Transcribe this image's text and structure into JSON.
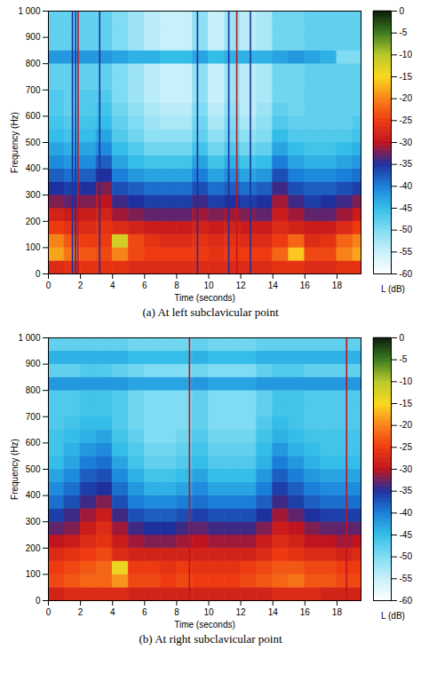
{
  "chart_data": [
    {
      "type": "heatmap",
      "caption": "(a) At left subclavicular point",
      "x_label": "Time (seconds)",
      "y_label": "Frequency (Hz)",
      "xlim": [
        0,
        19.5
      ],
      "xticks": [
        0,
        2,
        4,
        6,
        8,
        10,
        12,
        14,
        16,
        18
      ],
      "ylim": [
        0,
        1000
      ],
      "yticks": [
        0,
        100,
        200,
        300,
        400,
        500,
        600,
        700,
        800,
        900,
        {
          "value": 1000,
          "label": "1 000"
        }
      ],
      "cells": {
        "x_bins": [
          0,
          1,
          2,
          3,
          4,
          5,
          6,
          7,
          8,
          9,
          10,
          11,
          12,
          13,
          14,
          15,
          16,
          17,
          18,
          19,
          19.5
        ],
        "y_bins": [
          0,
          50,
          100,
          150,
          200,
          250,
          300,
          350,
          400,
          450,
          500,
          550,
          600,
          650,
          700,
          750,
          800,
          850,
          900,
          950,
          1000
        ],
        "values": [
          [
            -27,
            -26,
            -26,
            -26,
            -26,
            -27,
            -27,
            -27,
            -27,
            -27,
            -27,
            -27,
            -27,
            -27,
            -26,
            -26,
            -27,
            -27,
            -26,
            -26
          ],
          [
            -18,
            -21,
            -23,
            -24,
            -20,
            -24,
            -25,
            -25,
            -25,
            -25,
            -26,
            -25,
            -25,
            -25,
            -22,
            -16,
            -24,
            -24,
            -20,
            -18
          ],
          [
            -20,
            -23,
            -25,
            -25,
            -12,
            -24,
            -26,
            -27,
            -27,
            -26,
            -27,
            -26,
            -27,
            -27,
            -25,
            -22,
            -27,
            -26,
            -22,
            -20
          ],
          [
            -25,
            -26,
            -27,
            -26,
            -27,
            -28,
            -29,
            -29,
            -29,
            -28,
            -29,
            -28,
            -29,
            -29,
            -27,
            -28,
            -29,
            -29,
            -27,
            -25
          ],
          [
            -28,
            -29,
            -29,
            -28,
            -31,
            -32,
            -33,
            -33,
            -33,
            -31,
            -32,
            -31,
            -32,
            -33,
            -29,
            -31,
            -33,
            -33,
            -31,
            -29
          ],
          [
            -32,
            -33,
            -32,
            -30,
            -34,
            -35,
            -36,
            -36,
            -36,
            -34,
            -36,
            -35,
            -36,
            -35,
            -31,
            -34,
            -36,
            -35,
            -34,
            -32
          ],
          [
            -35,
            -36,
            -35,
            -32,
            -37,
            -38,
            -39,
            -39,
            -39,
            -37,
            -39,
            -38,
            -39,
            -38,
            -34,
            -37,
            -38,
            -38,
            -37,
            -36
          ],
          [
            -38,
            -39,
            -38,
            -35,
            -40,
            -42,
            -43,
            -43,
            -43,
            -40,
            -43,
            -41,
            -43,
            -42,
            -37,
            -40,
            -41,
            -41,
            -40,
            -39
          ],
          [
            -41,
            -42,
            -41,
            -38,
            -43,
            -45,
            -46,
            -46,
            -46,
            -43,
            -46,
            -44,
            -46,
            -45,
            -40,
            -43,
            -44,
            -44,
            -43,
            -42
          ],
          [
            -43,
            -44,
            -43,
            -41,
            -45,
            -47,
            -49,
            -49,
            -49,
            -46,
            -49,
            -47,
            -49,
            -48,
            -43,
            -45,
            -46,
            -46,
            -45,
            -44
          ],
          [
            -45,
            -46,
            -45,
            -43,
            -47,
            -49,
            -51,
            -51,
            -51,
            -48,
            -51,
            -49,
            -51,
            -50,
            -45,
            -47,
            -47,
            -47,
            -47,
            -46
          ],
          [
            -46,
            -47,
            -46,
            -45,
            -48,
            -50,
            -52,
            -53,
            -53,
            -49,
            -53,
            -50,
            -53,
            -51,
            -47,
            -48,
            -48,
            -48,
            -48,
            -47
          ],
          [
            -47,
            -48,
            -47,
            -46,
            -49,
            -51,
            -53,
            -54,
            -54,
            -50,
            -54,
            -51,
            -54,
            -52,
            -48,
            -49,
            -48,
            -48,
            -48,
            -48
          ],
          [
            -47,
            -48,
            -47,
            -47,
            -50,
            -52,
            -54,
            -55,
            -55,
            -51,
            -55,
            -52,
            -54,
            -53,
            -49,
            -49,
            -48,
            -48,
            -48,
            -48
          ],
          [
            -48,
            -48,
            -48,
            -48,
            -50,
            -52,
            -54,
            -55,
            -55,
            -51,
            -55,
            -52,
            -54,
            -53,
            -49,
            -49,
            -48,
            -48,
            -48,
            -48
          ],
          [
            -48,
            -48,
            -48,
            -48,
            -50,
            -52,
            -54,
            -55,
            -55,
            -51,
            -55,
            -52,
            -54,
            -53,
            -49,
            -49,
            -48,
            -48,
            -48,
            -48
          ],
          [
            -42,
            -42,
            -42,
            -42,
            -43,
            -44,
            -44,
            -45,
            -45,
            -43,
            -45,
            -44,
            -44,
            -44,
            -43,
            -42,
            -43,
            -44,
            -50,
            -50
          ],
          [
            -48,
            -48,
            -48,
            -48,
            -50,
            -52,
            -54,
            -55,
            -55,
            -51,
            -55,
            -52,
            -54,
            -53,
            -49,
            -49,
            -48,
            -48,
            -48,
            -48
          ],
          [
            -48,
            -48,
            -48,
            -48,
            -50,
            -52,
            -54,
            -55,
            -55,
            -51,
            -55,
            -52,
            -54,
            -53,
            -49,
            -49,
            -48,
            -48,
            -48,
            -48
          ],
          [
            -48,
            -48,
            -48,
            -48,
            -50,
            -52,
            -54,
            -55,
            -55,
            -51,
            -55,
            -52,
            -54,
            -53,
            -49,
            -49,
            -48,
            -48,
            -48,
            -48
          ]
        ]
      },
      "impulses": {
        "x": [
          1.5,
          1.7,
          1.85,
          3.2,
          9.3,
          11.25,
          11.75,
          12.6
        ],
        "values": [
          -35,
          -35,
          -30,
          -35,
          -35,
          -35,
          -30,
          -35
        ]
      },
      "colorbar": {
        "label": "L (dB)",
        "range": [
          -60,
          0
        ],
        "ticks": [
          -60,
          -55,
          -50,
          -45,
          -40,
          -35,
          -30,
          -25,
          -20,
          -15,
          -10,
          -5,
          0
        ],
        "colors": [
          "#ffffff",
          "#c8f0fa",
          "#7fdcf2",
          "#33bde8",
          "#1a7fd9",
          "#1e2f9e",
          "#c0141e",
          "#ee3a10",
          "#f8821a",
          "#f9d81e",
          "#b8c82a",
          "#3a7a1e",
          "#0a1a08"
        ]
      }
    },
    {
      "type": "heatmap",
      "caption": "(b) At right subclavicular point",
      "x_label": "Time (seconds)",
      "y_label": "Frequency (Hz)",
      "xlim": [
        0,
        19.5
      ],
      "xticks": [
        0,
        2,
        4,
        6,
        8,
        10,
        12,
        14,
        16,
        18
      ],
      "ylim": [
        0,
        1000
      ],
      "yticks": [
        0,
        100,
        200,
        300,
        400,
        500,
        600,
        700,
        800,
        900,
        {
          "value": 1000,
          "label": "1 000"
        }
      ],
      "cells": {
        "x_bins": [
          0,
          1,
          2,
          3,
          4,
          5,
          6,
          7,
          8,
          9,
          10,
          11,
          12,
          13,
          14,
          15,
          16,
          17,
          18,
          19,
          19.5
        ],
        "y_bins": [
          0,
          50,
          100,
          150,
          200,
          250,
          300,
          350,
          400,
          450,
          500,
          550,
          600,
          650,
          700,
          750,
          800,
          850,
          900,
          950,
          1000
        ],
        "values": [
          [
            -28,
            -27,
            -27,
            -27,
            -27,
            -28,
            -28,
            -28,
            -28,
            -28,
            -28,
            -28,
            -28,
            -28,
            -27,
            -27,
            -27,
            -28,
            -28,
            -28
          ],
          [
            -24,
            -23,
            -22,
            -22,
            -19,
            -24,
            -24,
            -25,
            -24,
            -25,
            -25,
            -25,
            -24,
            -23,
            -22,
            -21,
            -23,
            -23,
            -24,
            -24
          ],
          [
            -25,
            -24,
            -23,
            -22,
            -14,
            -25,
            -25,
            -26,
            -25,
            -26,
            -26,
            -26,
            -25,
            -24,
            -23,
            -23,
            -24,
            -24,
            -25,
            -25
          ],
          [
            -27,
            -26,
            -25,
            -24,
            -27,
            -28,
            -28,
            -28,
            -28,
            -28,
            -28,
            -28,
            -28,
            -27,
            -25,
            -26,
            -27,
            -27,
            -28,
            -27
          ],
          [
            -30,
            -29,
            -27,
            -26,
            -29,
            -31,
            -32,
            -32,
            -31,
            -30,
            -31,
            -31,
            -31,
            -29,
            -27,
            -28,
            -30,
            -30,
            -31,
            -30
          ],
          [
            -33,
            -32,
            -29,
            -27,
            -31,
            -34,
            -35,
            -35,
            -34,
            -33,
            -34,
            -34,
            -34,
            -32,
            -29,
            -30,
            -32,
            -33,
            -33,
            -33
          ],
          [
            -36,
            -34,
            -31,
            -29,
            -34,
            -37,
            -38,
            -38,
            -37,
            -36,
            -37,
            -37,
            -37,
            -35,
            -31,
            -33,
            -35,
            -36,
            -36,
            -36
          ],
          [
            -39,
            -37,
            -34,
            -32,
            -37,
            -40,
            -41,
            -41,
            -40,
            -39,
            -40,
            -40,
            -40,
            -38,
            -34,
            -36,
            -38,
            -39,
            -39,
            -39
          ],
          [
            -41,
            -39,
            -36,
            -35,
            -39,
            -42,
            -44,
            -44,
            -43,
            -41,
            -43,
            -43,
            -43,
            -40,
            -36,
            -38,
            -40,
            -41,
            -41,
            -41
          ],
          [
            -43,
            -41,
            -38,
            -37,
            -41,
            -44,
            -46,
            -46,
            -45,
            -43,
            -45,
            -45,
            -45,
            -42,
            -38,
            -40,
            -42,
            -43,
            -43,
            -43
          ],
          [
            -45,
            -43,
            -40,
            -39,
            -43,
            -46,
            -48,
            -48,
            -47,
            -45,
            -47,
            -47,
            -47,
            -44,
            -40,
            -42,
            -44,
            -45,
            -45,
            -45
          ],
          [
            -46,
            -44,
            -42,
            -41,
            -45,
            -47,
            -49,
            -49,
            -48,
            -46,
            -48,
            -48,
            -48,
            -45,
            -42,
            -44,
            -45,
            -46,
            -46,
            -46
          ],
          [
            -46,
            -45,
            -44,
            -43,
            -46,
            -48,
            -50,
            -50,
            -49,
            -47,
            -49,
            -49,
            -49,
            -46,
            -44,
            -45,
            -46,
            -46,
            -46,
            -46
          ],
          [
            -47,
            -46,
            -45,
            -45,
            -47,
            -49,
            -50,
            -50,
            -50,
            -48,
            -50,
            -50,
            -50,
            -47,
            -45,
            -46,
            -47,
            -47,
            -47,
            -47
          ],
          [
            -47,
            -47,
            -46,
            -46,
            -47,
            -49,
            -50,
            -50,
            -50,
            -48,
            -50,
            -50,
            -50,
            -48,
            -46,
            -46,
            -47,
            -47,
            -47,
            -47
          ],
          [
            -47,
            -47,
            -46,
            -46,
            -47,
            -49,
            -50,
            -50,
            -50,
            -48,
            -50,
            -50,
            -50,
            -48,
            -46,
            -46,
            -47,
            -47,
            -47,
            -47
          ],
          [
            -42,
            -42,
            -42,
            -42,
            -42,
            -43,
            -43,
            -43,
            -43,
            -42,
            -43,
            -43,
            -43,
            -42,
            -42,
            -42,
            -42,
            -42,
            -42,
            -42
          ],
          [
            -48,
            -48,
            -47,
            -47,
            -48,
            -49,
            -50,
            -50,
            -50,
            -49,
            -50,
            -50,
            -50,
            -48,
            -47,
            -47,
            -48,
            -48,
            -48,
            -48
          ],
          [
            -44,
            -44,
            -44,
            -44,
            -44,
            -45,
            -45,
            -45,
            -45,
            -44,
            -45,
            -45,
            -45,
            -44,
            -44,
            -44,
            -44,
            -44,
            -44,
            -44
          ],
          [
            -48,
            -48,
            -48,
            -48,
            -48,
            -49,
            -49,
            -49,
            -49,
            -48,
            -49,
            -49,
            -49,
            -48,
            -48,
            -48,
            -48,
            -48,
            -48,
            -48
          ]
        ]
      },
      "impulses": {
        "x": [
          8.8,
          18.6
        ],
        "values": [
          -30,
          -30
        ]
      },
      "colorbar": {
        "label": "L (dB)",
        "range": [
          -60,
          0
        ],
        "ticks": [
          -60,
          -55,
          -50,
          -45,
          -40,
          -35,
          -30,
          -25,
          -20,
          -15,
          -10,
          -5,
          0
        ],
        "colors": [
          "#ffffff",
          "#c8f0fa",
          "#7fdcf2",
          "#33bde8",
          "#1a7fd9",
          "#1e2f9e",
          "#c0141e",
          "#ee3a10",
          "#f8821a",
          "#f9d81e",
          "#b8c82a",
          "#3a7a1e",
          "#0a1a08"
        ]
      }
    }
  ]
}
